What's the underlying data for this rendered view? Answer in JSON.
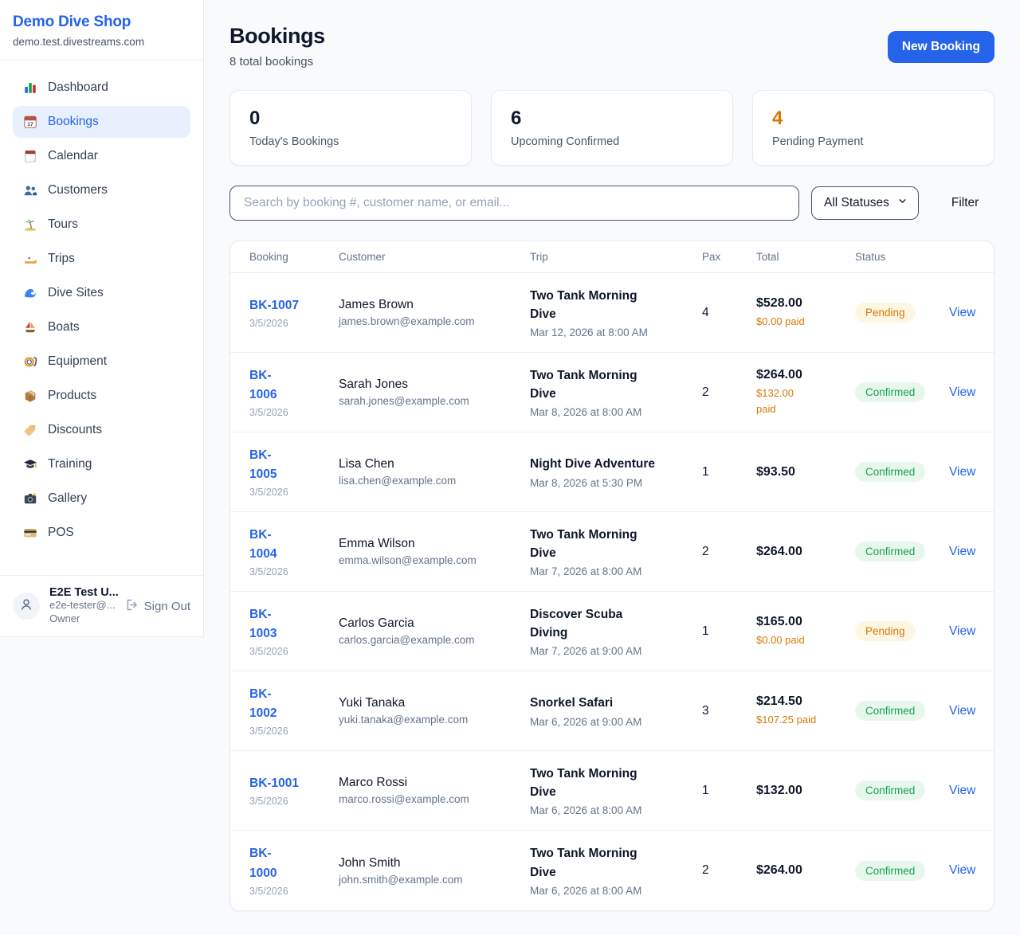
{
  "sidebar": {
    "shop_name": "Demo Dive Shop",
    "shop_domain": "demo.test.divestreams.com",
    "nav": [
      {
        "icon": "bar-chart-icon",
        "label": "Dashboard",
        "active": false
      },
      {
        "icon": "calendar-date-icon",
        "label": "Bookings",
        "active": true
      },
      {
        "icon": "tear-calendar-icon",
        "label": "Calendar",
        "active": false
      },
      {
        "icon": "people-icon",
        "label": "Customers",
        "active": false
      },
      {
        "icon": "island-icon",
        "label": "Tours",
        "active": false
      },
      {
        "icon": "speedboat-icon",
        "label": "Trips",
        "active": false
      },
      {
        "icon": "wave-icon",
        "label": "Dive Sites",
        "active": false
      },
      {
        "icon": "sailboat-icon",
        "label": "Boats",
        "active": false
      },
      {
        "icon": "dive-mask-icon",
        "label": "Equipment",
        "active": false
      },
      {
        "icon": "package-icon",
        "label": "Products",
        "active": false
      },
      {
        "icon": "tag-icon",
        "label": "Discounts",
        "active": false
      },
      {
        "icon": "grad-cap-icon",
        "label": "Training",
        "active": false
      },
      {
        "icon": "camera-icon",
        "label": "Gallery",
        "active": false
      },
      {
        "icon": "credit-card-icon",
        "label": "POS",
        "active": false
      }
    ],
    "user": {
      "name": "E2E Test U...",
      "email": "e2e-tester@...",
      "role": "Owner",
      "sign_out_label": "Sign Out"
    }
  },
  "header": {
    "title": "Bookings",
    "subtitle": "8 total bookings",
    "new_booking_label": "New Booking"
  },
  "stats": [
    {
      "value": "0",
      "label": "Today's Bookings",
      "color": "#0f172a"
    },
    {
      "value": "6",
      "label": "Upcoming Confirmed",
      "color": "#0f172a"
    },
    {
      "value": "4",
      "label": "Pending Payment",
      "color": "#d97706"
    }
  ],
  "filters": {
    "search_placeholder": "Search by booking #, customer name, or email...",
    "status_selected": "All Statuses",
    "filter_label": "Filter"
  },
  "table": {
    "columns": [
      "Booking",
      "Customer",
      "Trip",
      "Pax",
      "Total",
      "Status"
    ],
    "view_label": "View",
    "rows": [
      {
        "id": "BK-1007",
        "date": "3/5/2026",
        "customer": "James Brown",
        "email": "james.brown@example.com",
        "trip": "Two Tank Morning\nDive",
        "trip_datetime": "Mar 12, 2026 at 8:00 AM",
        "pax": "4",
        "total": "$528.00",
        "paid": "$0.00 paid",
        "status": "Pending"
      },
      {
        "id": "BK-\n1006",
        "date": "3/5/2026",
        "customer": "Sarah Jones",
        "email": "sarah.jones@example.com",
        "trip": "Two Tank Morning\nDive",
        "trip_datetime": "Mar 8, 2026 at 8:00 AM",
        "pax": "2",
        "total": "$264.00",
        "paid": "$132.00\npaid",
        "status": "Confirmed"
      },
      {
        "id": "BK-\n1005",
        "date": "3/5/2026",
        "customer": "Lisa Chen",
        "email": "lisa.chen@example.com",
        "trip": "Night Dive Adventure",
        "trip_datetime": "Mar 8, 2026 at 5:30 PM",
        "pax": "1",
        "total": "$93.50",
        "paid": "",
        "status": "Confirmed"
      },
      {
        "id": "BK-\n1004",
        "date": "3/5/2026",
        "customer": "Emma Wilson",
        "email": "emma.wilson@example.com",
        "trip": "Two Tank Morning\nDive",
        "trip_datetime": "Mar 7, 2026 at 8:00 AM",
        "pax": "2",
        "total": "$264.00",
        "paid": "",
        "status": "Confirmed"
      },
      {
        "id": "BK-\n1003",
        "date": "3/5/2026",
        "customer": "Carlos Garcia",
        "email": "carlos.garcia@example.com",
        "trip": "Discover Scuba\nDiving",
        "trip_datetime": "Mar 7, 2026 at 9:00 AM",
        "pax": "1",
        "total": "$165.00",
        "paid": "$0.00 paid",
        "status": "Pending"
      },
      {
        "id": "BK-\n1002",
        "date": "3/5/2026",
        "customer": "Yuki Tanaka",
        "email": "yuki.tanaka@example.com",
        "trip": "Snorkel Safari",
        "trip_datetime": "Mar 6, 2026 at 9:00 AM",
        "pax": "3",
        "total": "$214.50",
        "paid": "$107.25 paid",
        "status": "Confirmed"
      },
      {
        "id": "BK-1001",
        "date": "3/5/2026",
        "customer": "Marco Rossi",
        "email": "marco.rossi@example.com",
        "trip": "Two Tank Morning\nDive",
        "trip_datetime": "Mar 6, 2026 at 8:00 AM",
        "pax": "1",
        "total": "$132.00",
        "paid": "",
        "status": "Confirmed"
      },
      {
        "id": "BK-\n1000",
        "date": "3/5/2026",
        "customer": "John Smith",
        "email": "john.smith@example.com",
        "trip": "Two Tank Morning\nDive",
        "trip_datetime": "Mar 6, 2026 at 8:00 AM",
        "pax": "2",
        "total": "$264.00",
        "paid": "",
        "status": "Confirmed"
      }
    ]
  },
  "colors": {
    "accent_blue": "#2563eb",
    "pending_text": "#d97706",
    "pending_bg": "#fdf6e3",
    "confirmed_text": "#16a34a",
    "confirmed_bg": "#e8f7ee",
    "page_bg": "#f8fafc"
  }
}
